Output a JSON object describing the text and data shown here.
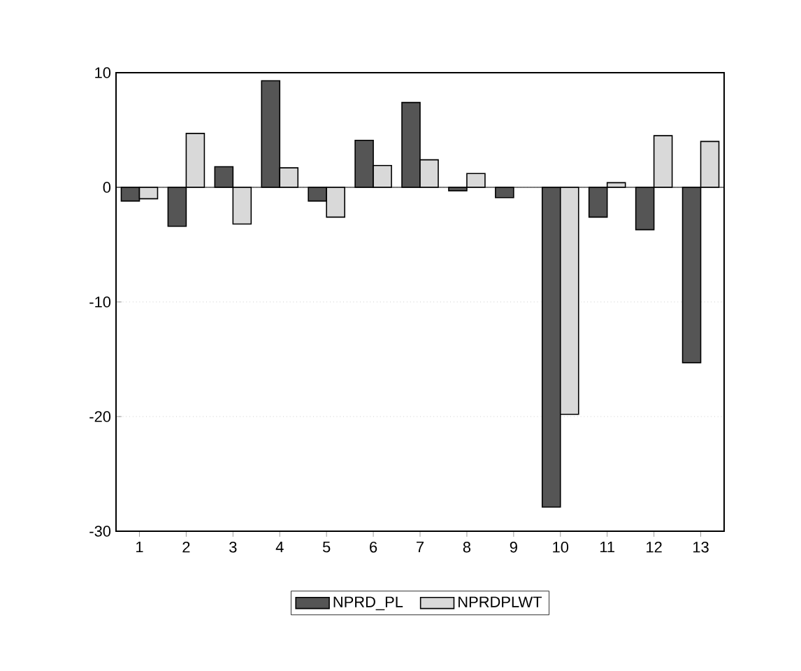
{
  "chart_data": {
    "type": "bar",
    "categories": [
      "1",
      "2",
      "3",
      "4",
      "5",
      "6",
      "7",
      "8",
      "9",
      "10",
      "11",
      "12",
      "13"
    ],
    "series": [
      {
        "name": "NPRD_PL",
        "color": "#555555",
        "values": [
          -1.2,
          -3.4,
          1.8,
          9.3,
          -1.2,
          4.1,
          7.4,
          -0.3,
          -0.9,
          -27.9,
          -2.6,
          -3.7,
          -15.3
        ]
      },
      {
        "name": "NPRDPLWT",
        "color": "#d9d9d9",
        "values": [
          -1.0,
          4.7,
          -3.2,
          1.7,
          -2.6,
          1.9,
          2.4,
          1.2,
          null,
          -19.8,
          0.4,
          4.5,
          4.0
        ]
      }
    ],
    "ylim": [
      -30,
      10
    ],
    "yticks": [
      -30,
      -20,
      -10,
      0,
      10
    ],
    "grid": "y",
    "legend": "bottom"
  }
}
